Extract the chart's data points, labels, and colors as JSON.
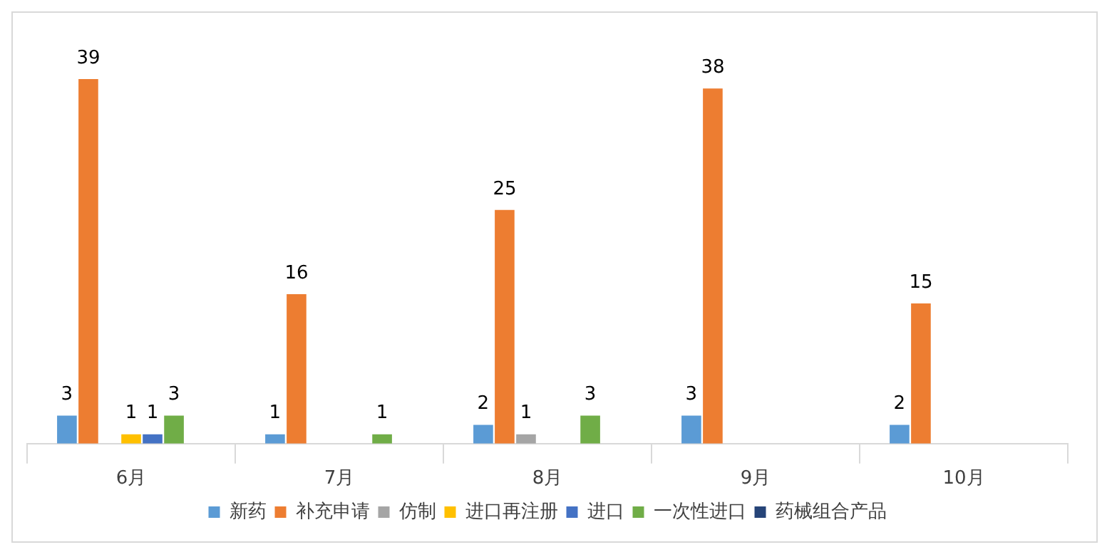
{
  "chart_data": {
    "type": "bar",
    "categories": [
      "6月",
      "7月",
      "8月",
      "9月",
      "10月"
    ],
    "series": [
      {
        "name": "新药",
        "color": "#5b9bd5",
        "values": [
          3,
          1,
          2,
          3,
          2
        ]
      },
      {
        "name": "补充申请",
        "color": "#ed7d31",
        "values": [
          39,
          16,
          25,
          38,
          15
        ]
      },
      {
        "name": "仿制",
        "color": "#a5a5a5",
        "values": [
          null,
          null,
          1,
          null,
          null
        ]
      },
      {
        "name": "进口再注册",
        "color": "#ffc000",
        "values": [
          1,
          null,
          null,
          null,
          null
        ]
      },
      {
        "name": "进口",
        "color": "#4472c4",
        "values": [
          1,
          null,
          null,
          null,
          null
        ]
      },
      {
        "name": "一次性进口",
        "color": "#70ad47",
        "values": [
          3,
          1,
          3,
          null,
          null
        ]
      },
      {
        "name": "药械组合产品",
        "color": "#264478",
        "values": [
          null,
          null,
          null,
          null,
          null
        ]
      }
    ],
    "data_labels": true,
    "legend": "bottom",
    "grid": false,
    "tick_labels": "x"
  }
}
